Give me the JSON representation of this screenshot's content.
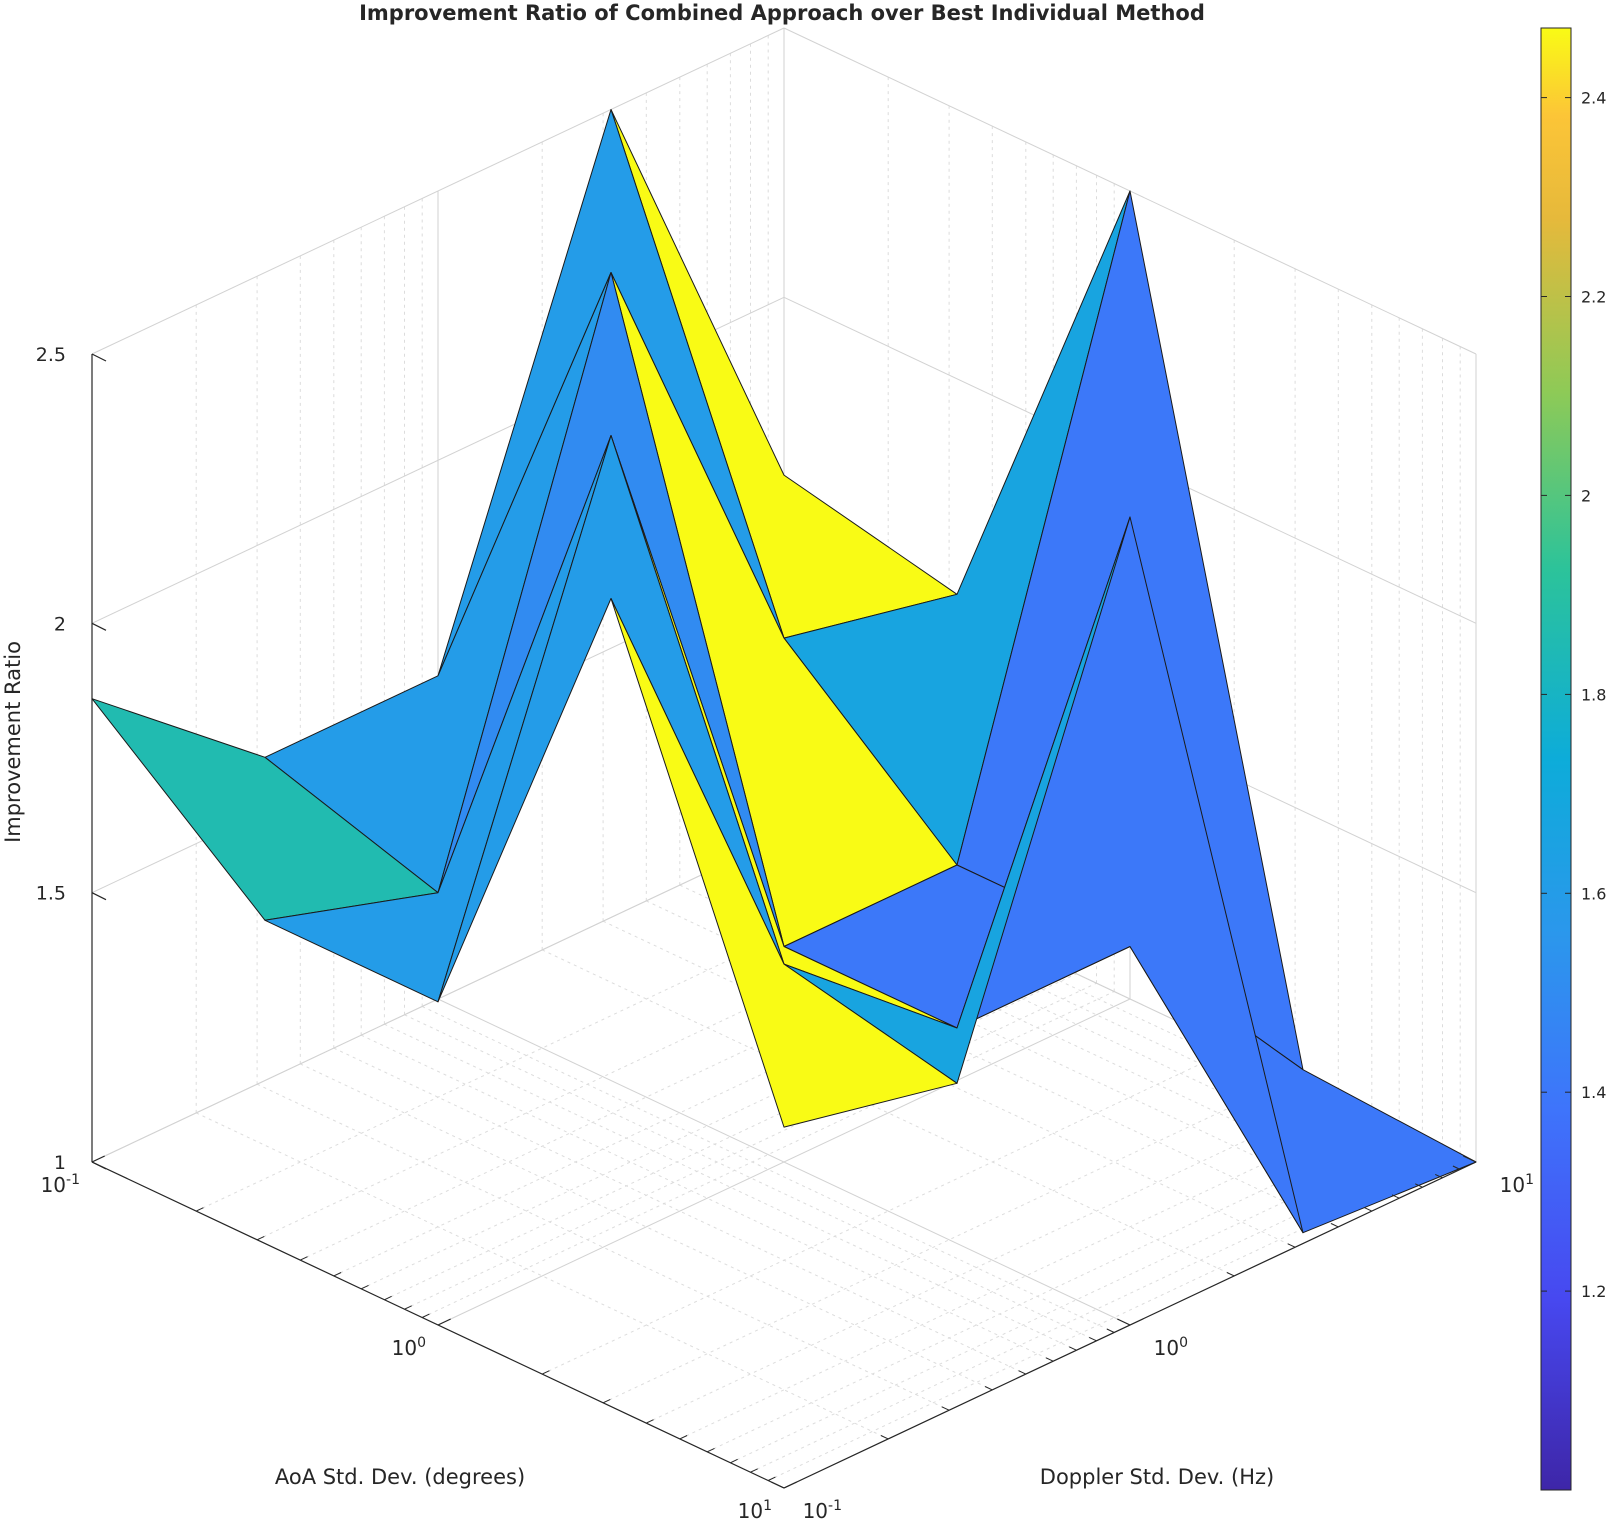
{
  "chart_data": {
    "type": "surface3d",
    "title": "Improvement Ratio of Combined Approach over Best Individual Method",
    "xlabel": "AoA Std. Dev. (degrees)",
    "ylabel": "Doppler Std. Dev. (Hz)",
    "zlabel": "Improvement Ratio",
    "x_scale": "log",
    "y_scale": "log",
    "x": [
      0.1,
      0.3162,
      1,
      3.162,
      10
    ],
    "y": [
      0.1,
      0.3162,
      1,
      3.162,
      10
    ],
    "z": [
      [
        1.86,
        1.6,
        1.6,
        2.5,
        1.67
      ],
      [
        1.6,
        1.5,
        2.5,
        1.67,
        1.6
      ],
      [
        1.6,
        2.5,
        1.4,
        1.4,
        2.5
      ],
      [
        2.5,
        1.67,
        1.4,
        1.4,
        1.02
      ],
      [
        1.67,
        1.6,
        2.5,
        1.02,
        1.0
      ]
    ],
    "zlim": [
      1,
      2.5
    ],
    "z_ticks": [
      "1",
      "1.5",
      "2",
      "2.5"
    ],
    "x_tick_labels": [
      {
        "base": "10",
        "exp": "-1"
      },
      {
        "base": "10",
        "exp": "0"
      },
      {
        "base": "10",
        "exp": "1"
      }
    ],
    "y_tick_labels": [
      {
        "base": "10",
        "exp": "-1"
      },
      {
        "base": "10",
        "exp": "0"
      },
      {
        "base": "10",
        "exp": "1"
      }
    ],
    "colormap": "parula",
    "colorbar": {
      "min": 1.0,
      "max": 2.47,
      "ticks": [
        "1.2",
        "1.4",
        "1.6",
        "1.8",
        "2",
        "2.2",
        "2.4"
      ]
    },
    "grid": true
  }
}
